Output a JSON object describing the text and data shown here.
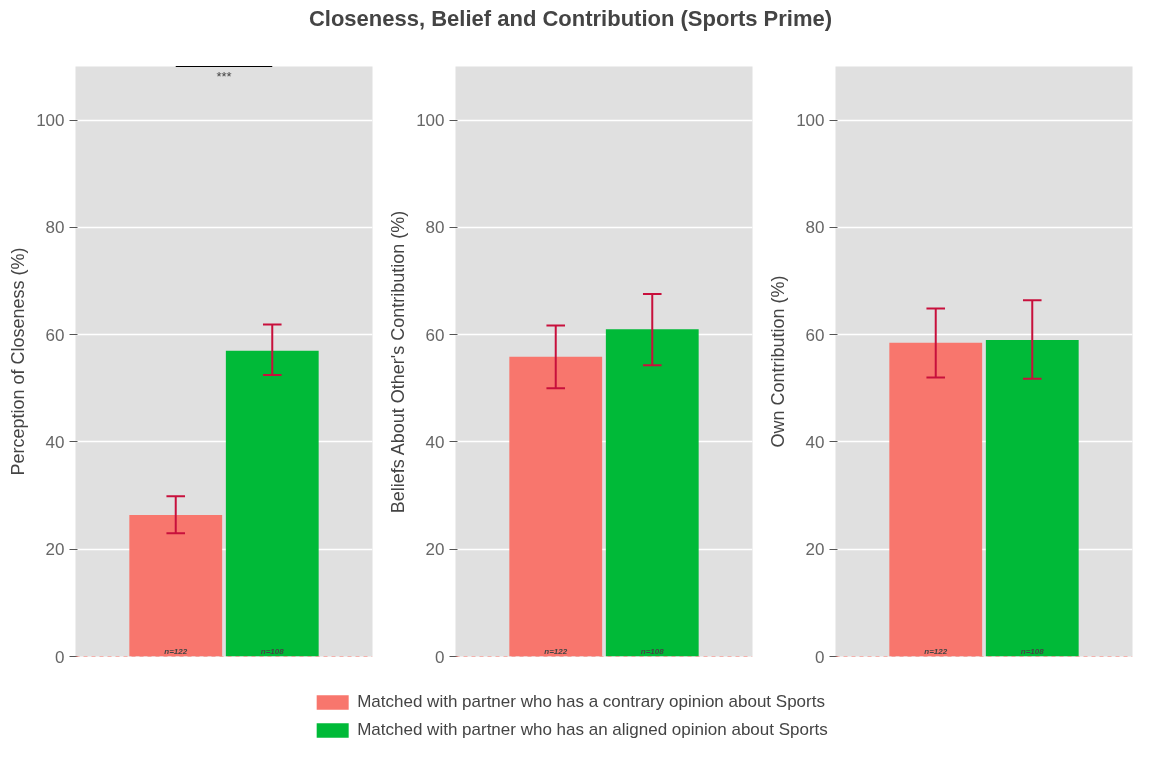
{
  "chart_data": [
    {
      "type": "bar",
      "title": "Closeness, Belief and Contribution (Sports Prime)",
      "ylabel": "Perception of Closeness (%)",
      "categories": [
        null
      ],
      "ylim": [
        0,
        110
      ],
      "yticks": [
        0,
        20,
        40,
        60,
        80,
        100
      ],
      "grid": "y",
      "legend": "bottom",
      "tick_labels": "y",
      "annotations": [
        "***",
        {
          "text": "n=122",
          "y": 0
        },
        {
          "text": "n=108",
          "y": 0
        }
      ],
      "ref_lines": [
        {
          "axis": "y",
          "value": 0,
          "color": "#f8766d",
          "line_style": "dashed"
        }
      ],
      "series": [
        {
          "name": "Matched with partner who has a contrary opinion about Sports",
          "color": "#f8766d",
          "values": [
            26.4
          ],
          "errors": [
            [
              23.0,
              29.9
            ]
          ]
        },
        {
          "name": "Matched with partner who has an aligned opinion about Sports",
          "color": "#00ba38",
          "values": [
            57.0
          ],
          "errors": [
            [
              52.5,
              61.9
            ]
          ]
        }
      ]
    },
    {
      "type": "bar",
      "ylabel": "Beliefs About Other's Contribution (%)",
      "categories": [
        null
      ],
      "ylim": [
        0,
        110
      ],
      "yticks": [
        0,
        20,
        40,
        60,
        80,
        100
      ],
      "grid": "y",
      "tick_labels": "y",
      "annotations": [
        {
          "text": "n=122",
          "y": 0
        },
        {
          "text": "n=108",
          "y": 0
        }
      ],
      "ref_lines": [
        {
          "axis": "y",
          "value": 0,
          "color": "#f8766d",
          "line_style": "dashed"
        }
      ],
      "series": [
        {
          "color": "#f8766d",
          "values": [
            55.9
          ],
          "errors": [
            [
              50.0,
              61.7
            ]
          ]
        },
        {
          "color": "#00ba38",
          "values": [
            61.0
          ],
          "errors": [
            [
              54.3,
              67.6
            ]
          ]
        }
      ]
    },
    {
      "type": "bar",
      "ylabel": "Own Contribution (%)",
      "categories": [
        null
      ],
      "ylim": [
        0,
        110
      ],
      "yticks": [
        0,
        20,
        40,
        60,
        80,
        100
      ],
      "grid": "y",
      "tick_labels": "y",
      "annotations": [
        {
          "text": "n=122",
          "y": 0
        },
        {
          "text": "n=108",
          "y": 0
        }
      ],
      "ref_lines": [
        {
          "axis": "y",
          "value": 0,
          "color": "#f8766d",
          "line_style": "dashed"
        }
      ],
      "series": [
        {
          "color": "#f8766d",
          "values": [
            58.5
          ],
          "errors": [
            [
              52.0,
              64.9
            ]
          ]
        },
        {
          "color": "#00ba38",
          "values": [
            59.0
          ],
          "errors": [
            [
              51.8,
              66.4
            ]
          ]
        }
      ]
    }
  ]
}
